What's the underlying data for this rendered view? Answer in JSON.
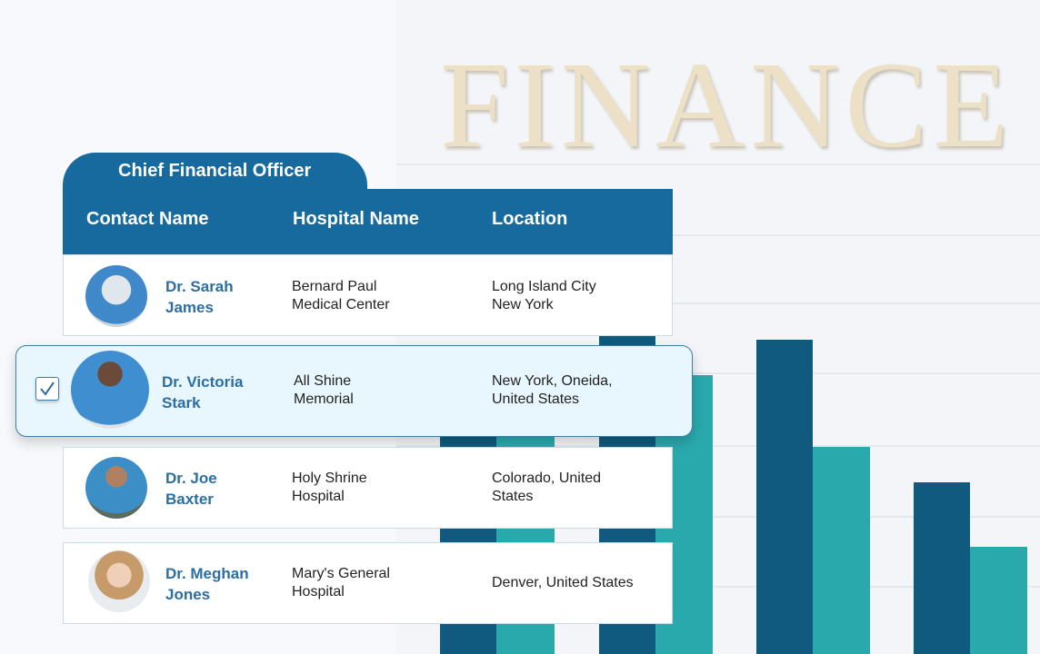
{
  "background": {
    "photo_text": "FINANCE",
    "bar_colors": {
      "dark": "#0f5a7e",
      "teal": "#2aa9ad"
    }
  },
  "card": {
    "tab_title": "Chief Financial Officer",
    "columns": [
      "Contact Name",
      "Hospital Name",
      "Location"
    ],
    "rows": [
      {
        "name": [
          "Dr. Sarah",
          "James"
        ],
        "hospital": [
          "Bernard Paul",
          "Medical Center"
        ],
        "location": [
          "Long Island City",
          "New York"
        ],
        "selected": false
      },
      {
        "name": [
          "Dr. Victoria",
          "Stark"
        ],
        "hospital": [
          "All Shine",
          "Memorial"
        ],
        "location": [
          "New York, Oneida,",
          "United States"
        ],
        "selected": true
      },
      {
        "name": [
          "Dr. Joe",
          "Baxter"
        ],
        "hospital": [
          "Holy Shrine",
          "Hospital"
        ],
        "location": [
          "Colorado, United",
          "States"
        ],
        "selected": false
      },
      {
        "name": [
          "Dr. Meghan",
          "Jones"
        ],
        "hospital": [
          "Mary's General",
          "Hospital"
        ],
        "location": [
          "Denver, United States"
        ],
        "selected": false
      }
    ]
  },
  "colors": {
    "header": "#176a9e",
    "name_text": "#2b6ea3",
    "selected_bg": "#e8f6fd"
  }
}
